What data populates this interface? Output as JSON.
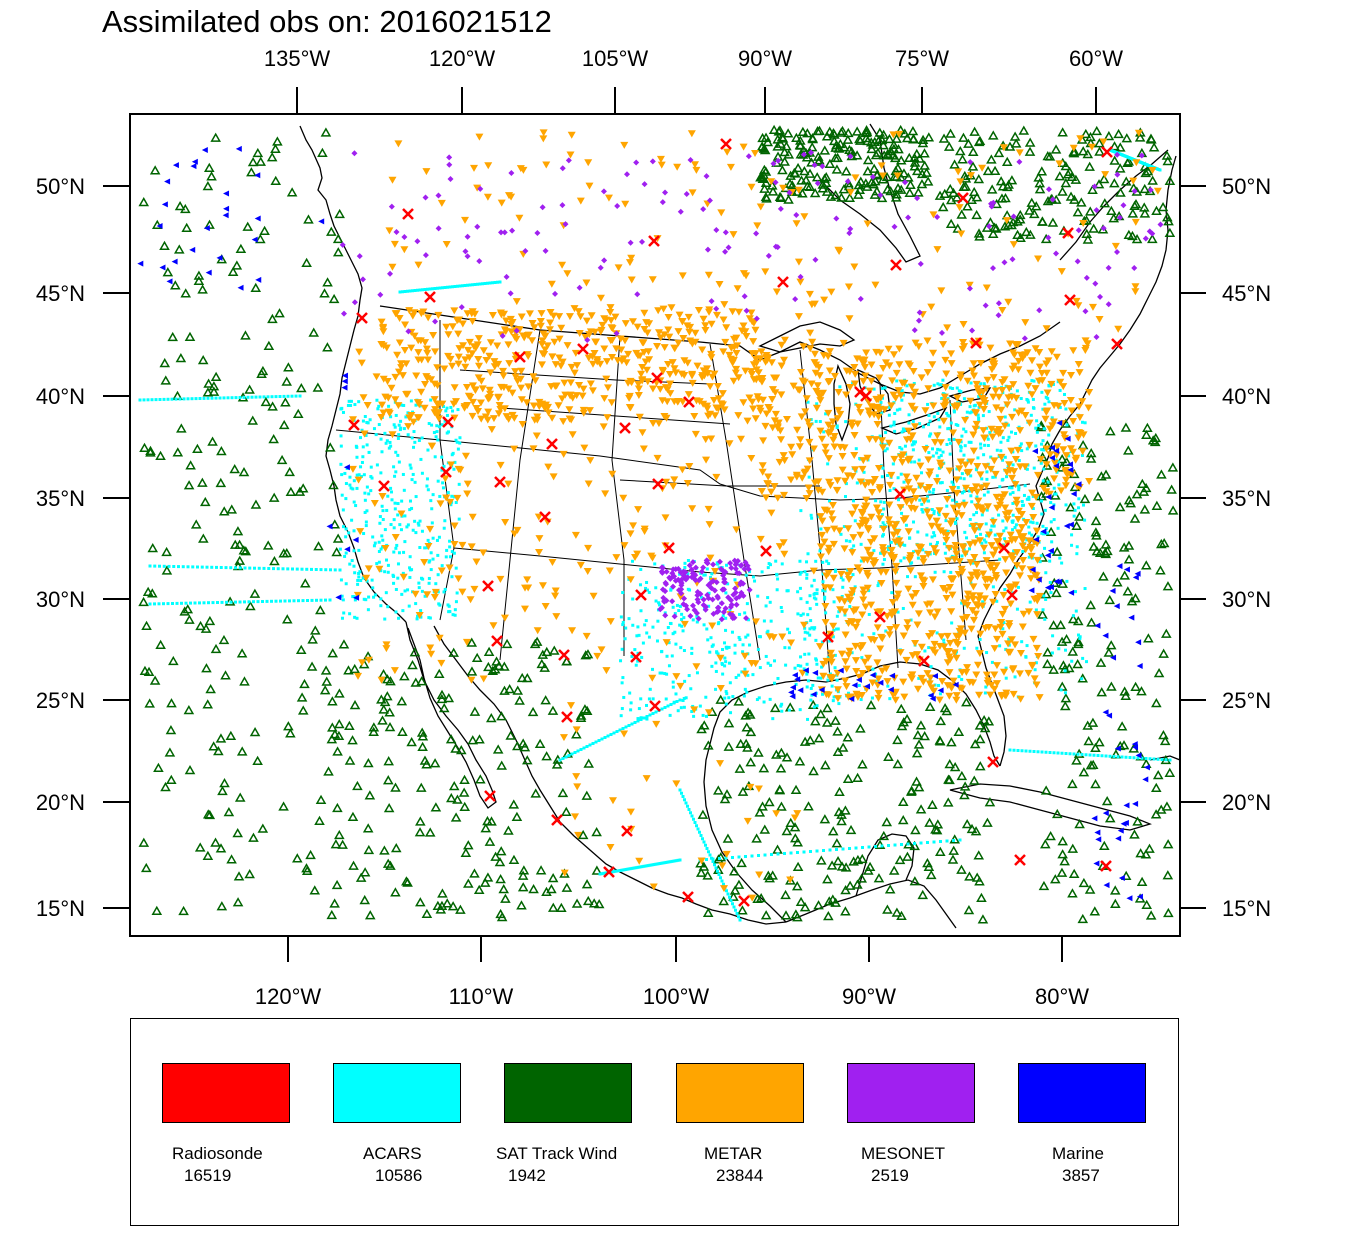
{
  "title": "Assimilated obs on: 2016021512",
  "top_axis_labels": [
    "135°W",
    "120°W",
    "105°W",
    "90°W",
    "75°W",
    "60°W"
  ],
  "bottom_axis_labels": [
    "120°W",
    "110°W",
    "100°W",
    "90°W",
    "80°W"
  ],
  "left_axis_labels": [
    "50°N",
    "45°N",
    "40°N",
    "35°N",
    "30°N",
    "25°N",
    "20°N",
    "15°N"
  ],
  "right_axis_labels": [
    "50°N",
    "45°N",
    "40°N",
    "35°N",
    "30°N",
    "25°N",
    "20°N",
    "15°N"
  ],
  "legend": [
    {
      "name": "Radiosonde",
      "count": "16519",
      "color": "#ff0000"
    },
    {
      "name": "ACARS",
      "count": "10586",
      "color": "#00ffff"
    },
    {
      "name": "SAT Track Wind",
      "count": "1942",
      "color": "#006400"
    },
    {
      "name": "METAR",
      "count": "23844",
      "color": "#ffa500"
    },
    {
      "name": "MESONET",
      "count": "2519",
      "color": "#a020f0"
    },
    {
      "name": "Marine",
      "count": "3857",
      "color": "#0000ff"
    }
  ],
  "colors": {
    "radiosonde": "#ff0000",
    "acars": "#00ffff",
    "sat_wind": "#006400",
    "metar": "#ffa500",
    "mesonet": "#a020f0",
    "marine": "#0000ff",
    "coast": "#000000"
  }
}
